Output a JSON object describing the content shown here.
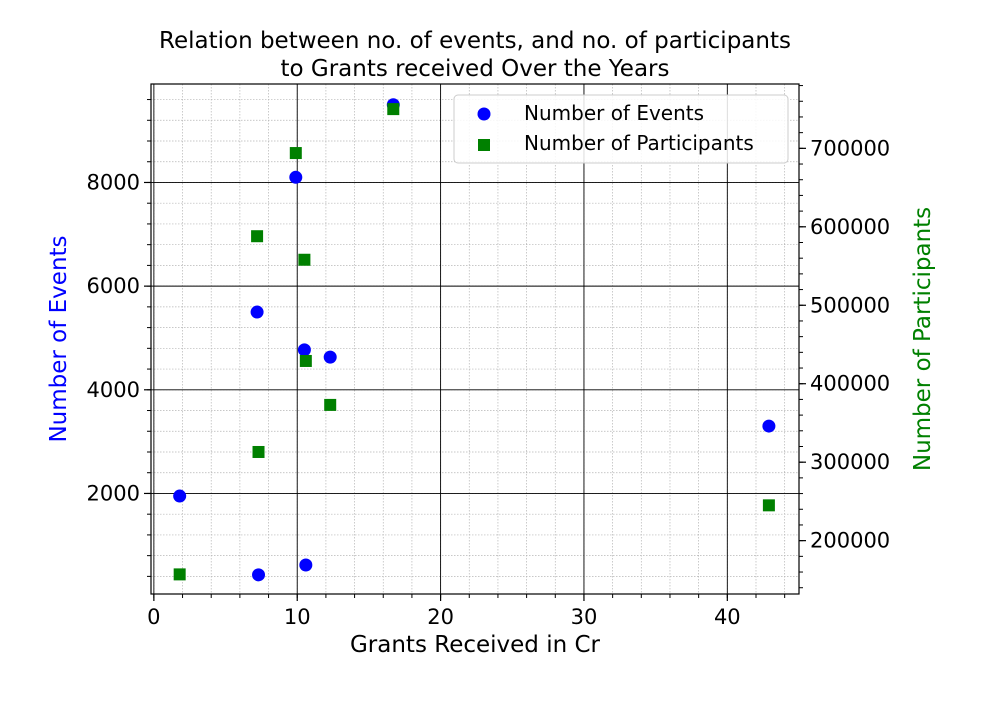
{
  "chart_data": {
    "type": "scatter",
    "title_lines": [
      "Relation between no. of events, and no. of participants",
      "to Grants received Over the Years"
    ],
    "xlabel": "Grants Received in Cr",
    "ylabel_left": "Number of Events",
    "ylabel_right": "Number of Participants",
    "xlim": [
      -0.2,
      45
    ],
    "ylim_left": [
      60,
      9900
    ],
    "ylim_right": [
      132000,
      782000
    ],
    "x_ticks": [
      0,
      10,
      20,
      30,
      40
    ],
    "y_left_ticks": [
      2000,
      4000,
      6000,
      8000
    ],
    "y_right_ticks": [
      200000,
      300000,
      400000,
      500000,
      600000,
      700000
    ],
    "grid": true,
    "legend_position": "top-right",
    "series": [
      {
        "name": "Number of Events",
        "axis": "left",
        "marker": "circle",
        "color": "#0000ff",
        "points": [
          {
            "x": 1.8,
            "y": 1950
          },
          {
            "x": 7.3,
            "y": 430
          },
          {
            "x": 10.6,
            "y": 620
          },
          {
            "x": 7.2,
            "y": 5500
          },
          {
            "x": 10.5,
            "y": 4770
          },
          {
            "x": 12.3,
            "y": 4630
          },
          {
            "x": 9.9,
            "y": 8100
          },
          {
            "x": 16.7,
            "y": 9500
          },
          {
            "x": 42.9,
            "y": 3300
          }
        ]
      },
      {
        "name": "Number of Participants",
        "axis": "right",
        "marker": "square",
        "color": "#008000",
        "points": [
          {
            "x": 1.8,
            "y": 157000
          },
          {
            "x": 7.3,
            "y": 313000
          },
          {
            "x": 7.2,
            "y": 588000
          },
          {
            "x": 10.5,
            "y": 558000
          },
          {
            "x": 10.6,
            "y": 429000
          },
          {
            "x": 12.3,
            "y": 373000
          },
          {
            "x": 9.9,
            "y": 694000
          },
          {
            "x": 16.7,
            "y": 750000
          },
          {
            "x": 42.9,
            "y": 245000
          }
        ]
      }
    ]
  }
}
